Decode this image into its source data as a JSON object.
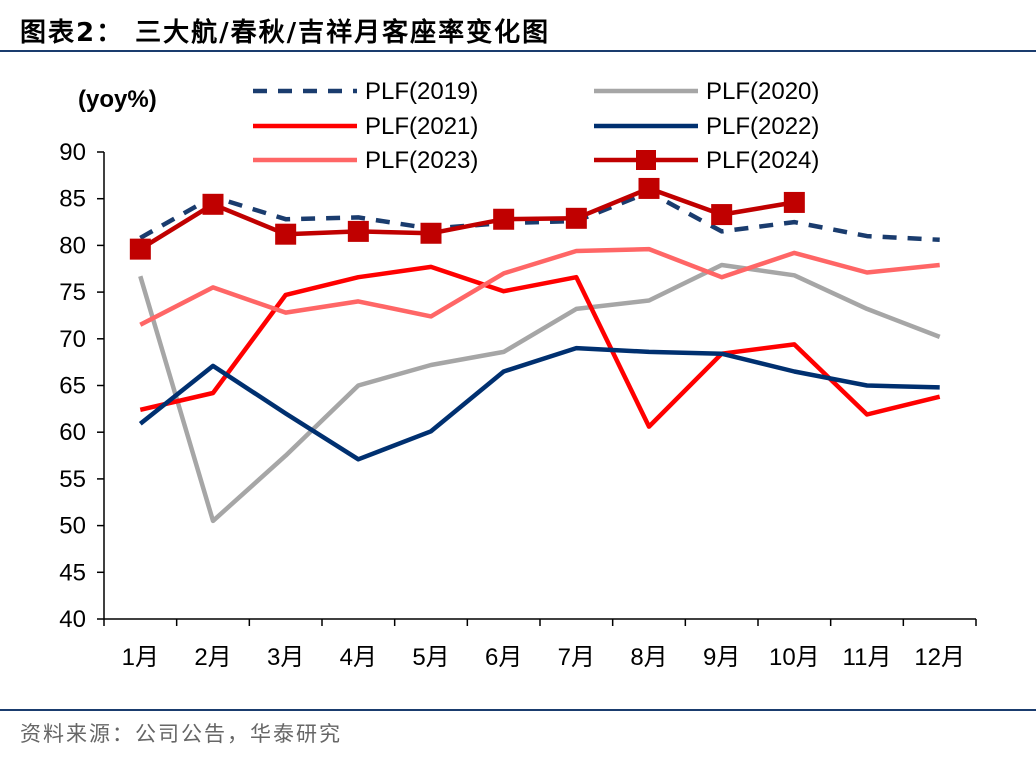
{
  "header": {
    "title": "图表2：  三大航/春秋/吉祥月客座率变化图"
  },
  "footer": {
    "source": "资料来源：公司公告，华泰研究"
  },
  "chart_data": {
    "type": "line",
    "title": "",
    "ylabel": "(yoy%)",
    "xlabel": "",
    "ylim": [
      40,
      90
    ],
    "yticks": [
      40,
      45,
      50,
      55,
      60,
      65,
      70,
      75,
      80,
      85,
      90
    ],
    "categories": [
      "1月",
      "2月",
      "3月",
      "4月",
      "5月",
      "6月",
      "7月",
      "8月",
      "9月",
      "10月",
      "11月",
      "12月"
    ],
    "legend_position": "top",
    "grid": false,
    "series": [
      {
        "name": "PLF(2019)",
        "color": "#1a3c6e",
        "style": "dashed",
        "marker": "none",
        "values": [
          80.8,
          85.2,
          82.8,
          83.0,
          81.8,
          82.4,
          82.6,
          85.7,
          81.5,
          82.5,
          81.0,
          80.6
        ]
      },
      {
        "name": "PLF(2020)",
        "color": "#a6a6a6",
        "style": "solid",
        "marker": "none",
        "values": [
          76.7,
          50.5,
          57.5,
          65.0,
          67.2,
          68.6,
          73.2,
          74.1,
          77.9,
          76.8,
          73.2,
          70.2
        ]
      },
      {
        "name": "PLF(2021)",
        "color": "#ff0000",
        "style": "solid",
        "marker": "none",
        "values": [
          62.4,
          64.2,
          74.7,
          76.6,
          77.7,
          75.1,
          76.6,
          60.6,
          68.4,
          69.4,
          61.9,
          63.8
        ]
      },
      {
        "name": "PLF(2022)",
        "color": "#003070",
        "style": "solid",
        "marker": "none",
        "values": [
          60.9,
          67.1,
          62.0,
          57.1,
          60.1,
          66.5,
          69.0,
          68.6,
          68.4,
          66.5,
          65.0,
          64.8
        ]
      },
      {
        "name": "PLF(2023)",
        "color": "#ff6666",
        "style": "solid",
        "marker": "none",
        "values": [
          71.5,
          75.5,
          72.8,
          74.0,
          72.4,
          77.0,
          79.4,
          79.6,
          76.6,
          79.2,
          77.1,
          77.9
        ]
      },
      {
        "name": "PLF(2024)",
        "color": "#c00000",
        "style": "solid",
        "marker": "square",
        "values": [
          79.6,
          84.4,
          81.2,
          81.5,
          81.3,
          82.8,
          82.9,
          86.1,
          83.3,
          84.6,
          null,
          null
        ]
      }
    ]
  }
}
